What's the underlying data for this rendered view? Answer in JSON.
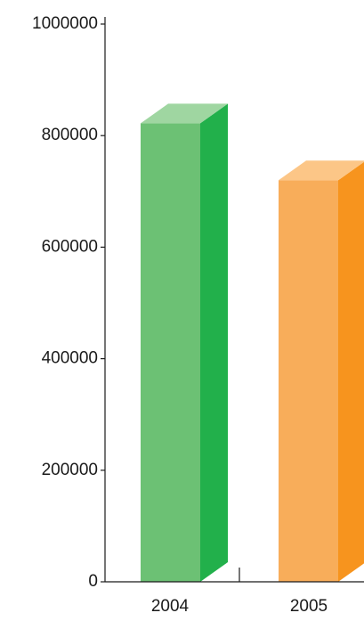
{
  "chart_data": {
    "type": "bar",
    "style": "3d-column",
    "categories": [
      "2004",
      "2005"
    ],
    "series": [
      {
        "values": [
          822000,
          720000
        ]
      }
    ],
    "bar_colors": [
      {
        "front": "#6cc174",
        "side": "#22b04b",
        "top": "#9fd6a1"
      },
      {
        "front": "#f8ad5a",
        "side": "#f7941e",
        "top": "#fcc687"
      }
    ],
    "ylim": [
      0,
      1000000
    ],
    "yticks": [
      0,
      200000,
      400000,
      600000,
      800000,
      1000000
    ],
    "ytick_labels": [
      "0",
      "200000",
      "400000",
      "600000",
      "800000",
      "1000000"
    ],
    "title": "",
    "xlabel": "",
    "ylabel": "",
    "grid": false,
    "legend": "none"
  }
}
